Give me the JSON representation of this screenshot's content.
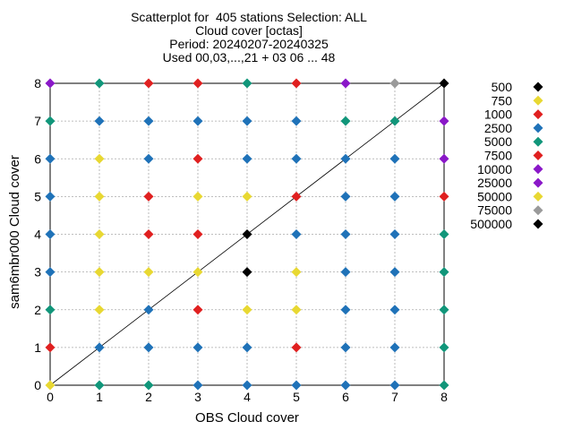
{
  "chart_data": {
    "type": "scatter",
    "title_lines": [
      "Scatterplot for  405 stations Selection: ALL",
      "Cloud cover [octas]",
      "Period: 20240207-20240325",
      "Used 00,03,...,21 + 03 06 ... 48"
    ],
    "xlabel": "OBS Cloud cover",
    "ylabel": "sam6mbr000 Cloud cover",
    "xlim": [
      0,
      8
    ],
    "ylim": [
      0,
      8
    ],
    "xticks": [
      "0",
      "1",
      "2",
      "3",
      "4",
      "5",
      "6",
      "7",
      "8"
    ],
    "yticks": [
      "0",
      "1",
      "2",
      "3",
      "4",
      "5",
      "6",
      "7",
      "8"
    ],
    "grid": true,
    "diagonal": true,
    "legend_position": "right",
    "legend": [
      {
        "label": "500",
        "color": "#000000"
      },
      {
        "label": "750",
        "color": "#e8d832"
      },
      {
        "label": "1000",
        "color": "#e02020"
      },
      {
        "label": "2500",
        "color": "#1f72b8"
      },
      {
        "label": "5000",
        "color": "#11967a"
      },
      {
        "label": "7500",
        "color": "#e02020"
      },
      {
        "label": "10000",
        "color": "#8a18c8"
      },
      {
        "label": "25000",
        "color": "#8a18c8"
      },
      {
        "label": "50000",
        "color": "#e8d832"
      },
      {
        "label": "75000",
        "color": "#9a9a9a"
      },
      {
        "label": "500000",
        "color": "#000000"
      }
    ],
    "colors": {
      "green": "#11967a",
      "red": "#e02020",
      "blue": "#1f72b8",
      "yellow": "#e8d832",
      "purple": "#8a18c8",
      "gray": "#9a9a9a",
      "black": "#000000"
    },
    "grid_colors": [
      [
        "yellow",
        "green",
        "green",
        "blue",
        "blue",
        "blue",
        "blue",
        "blue",
        "green"
      ],
      [
        "red",
        "blue",
        "blue",
        "blue",
        "blue",
        "red",
        "blue",
        "blue",
        "green"
      ],
      [
        "green",
        "yellow",
        "blue",
        "red",
        "yellow",
        "yellow",
        "blue",
        "blue",
        "green"
      ],
      [
        "blue",
        "yellow",
        "yellow",
        "yellow",
        "black",
        "yellow",
        "blue",
        "blue",
        "green"
      ],
      [
        "blue",
        "yellow",
        "red",
        "red",
        "black",
        "blue",
        "blue",
        "blue",
        "green"
      ],
      [
        "blue",
        "yellow",
        "red",
        "yellow",
        "yellow",
        "red",
        "blue",
        "blue",
        "red"
      ],
      [
        "blue",
        "yellow",
        "blue",
        "red",
        "blue",
        "blue",
        "blue",
        "blue",
        "purple"
      ],
      [
        "green",
        "blue",
        "blue",
        "blue",
        "blue",
        "blue",
        "green",
        "green",
        "purple"
      ],
      [
        "purple",
        "green",
        "red",
        "red",
        "green",
        "red",
        "purple",
        "gray",
        "black"
      ]
    ]
  }
}
